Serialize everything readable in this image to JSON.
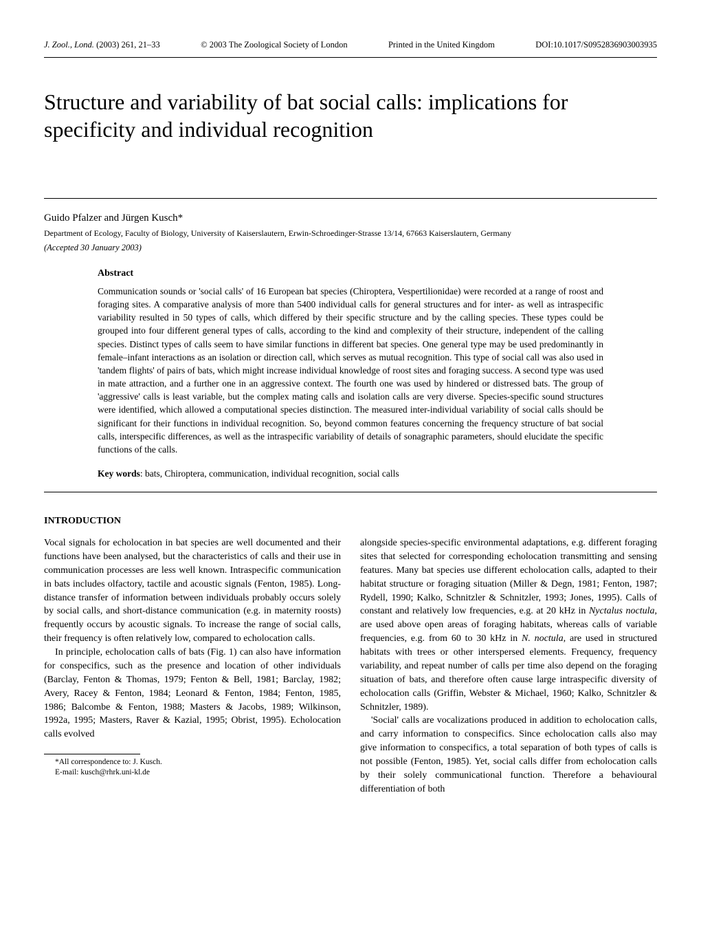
{
  "header": {
    "journal": "J. Zool., Lond.",
    "year_vol": "(2003) 261, 21–33",
    "copyright": "© 2003 The Zoological Society of London",
    "printed": "Printed in the United Kingdom",
    "doi": "DOI:10.1017/S0952836903003935"
  },
  "title": "Structure and variability of bat social calls: implications for specificity and individual recognition",
  "authors": "Guido Pfalzer and Jürgen Kusch*",
  "affiliation": "Department of Ecology, Faculty of Biology, University of Kaiserslautern, Erwin-Schroedinger-Strasse 13/14, 67663 Kaiserslautern, Germany",
  "accepted": "(Accepted 30 January 2003)",
  "abstract": {
    "heading": "Abstract",
    "text": "Communication sounds or 'social calls' of 16 European bat species (Chiroptera, Vespertilionidae) were recorded at a range of roost and foraging sites. A comparative analysis of more than 5400 individual calls for general structures and for inter- as well as intraspecific variability resulted in 50 types of calls, which differed by their specific structure and by the calling species. These types could be grouped into four different general types of calls, according to the kind and complexity of their structure, independent of the calling species. Distinct types of calls seem to have similar functions in different bat species. One general type may be used predominantly in female–infant interactions as an isolation or direction call, which serves as mutual recognition. This type of social call was also used in 'tandem flights' of pairs of bats, which might increase individual knowledge of roost sites and foraging success. A second type was used in mate attraction, and a further one in an aggressive context. The fourth one was used by hindered or distressed bats. The group of 'aggressive' calls is least variable, but the complex mating calls and isolation calls are very diverse. Species-specific sound structures were identified, which allowed a computational species distinction. The measured inter-individual variability of social calls should be significant for their functions in individual recognition. So, beyond common features concerning the frequency structure of bat social calls, interspecific differences, as well as the intraspecific variability of details of sonagraphic parameters, should elucidate the specific functions of the calls."
  },
  "keywords": {
    "label": "Key words",
    "text": ": bats, Chiroptera, communication, individual recognition, social calls"
  },
  "intro": {
    "heading": "INTRODUCTION",
    "p1": "Vocal signals for echolocation in bat species are well documented and their functions have been analysed, but the characteristics of calls and their use in communication processes are less well known. Intraspecific communication in bats includes olfactory, tactile and acoustic signals (Fenton, 1985). Long-distance transfer of information between individuals probably occurs solely by social calls, and short-distance communication (e.g. in maternity roosts) frequently occurs by acoustic signals. To increase the range of social calls, their frequency is often relatively low, compared to echolocation calls.",
    "p2": "In principle, echolocation calls of bats (Fig. 1) can also have information for conspecifics, such as the presence and location of other individuals (Barclay, Fenton & Thomas, 1979; Fenton & Bell, 1981; Barclay, 1982; Avery, Racey & Fenton, 1984; Leonard & Fenton, 1984; Fenton, 1985, 1986; Balcombe & Fenton, 1988; Masters & Jacobs, 1989; Wilkinson, 1992a, 1995; Masters, Raver & Kazial, 1995; Obrist, 1995). Echolocation calls evolved",
    "p3a": "alongside species-specific environmental adaptations, e.g. different foraging sites that selected for corresponding echolocation transmitting and sensing features. Many bat species use different echolocation calls, adapted to their habitat structure or foraging situation (Miller & Degn, 1981; Fenton, 1987; Rydell, 1990; Kalko, Schnitzler & Schnitzler, 1993; Jones, 1995). Calls of constant and relatively low frequencies, e.g. at 20 kHz in ",
    "p3_species1": "Nyctalus noctula",
    "p3b": ", are used above open areas of foraging habitats, whereas calls of variable frequencies, e.g. from 60 to 30 kHz in ",
    "p3_species2": "N. noctula",
    "p3c": ", are used in structured habitats with trees or other interspersed elements. Frequency, frequency variability, and repeat number of calls per time also depend on the foraging situation of bats, and therefore often cause large intraspecific diversity of echolocation calls (Griffin, Webster & Michael, 1960; Kalko, Schnitzler & Schnitzler, 1989).",
    "p4": "'Social' calls are vocalizations produced in addition to echolocation calls, and carry information to conspecifics. Since echolocation calls also may give information to conspecifics, a total separation of both types of calls is not possible (Fenton, 1985). Yet, social calls differ from echolocation calls by their solely communicational function. Therefore a behavioural differentiation of both"
  },
  "footnote": {
    "line1": "*All correspondence to: J. Kusch.",
    "line2": "E-mail: kusch@rhrk.uni-kl.de"
  }
}
